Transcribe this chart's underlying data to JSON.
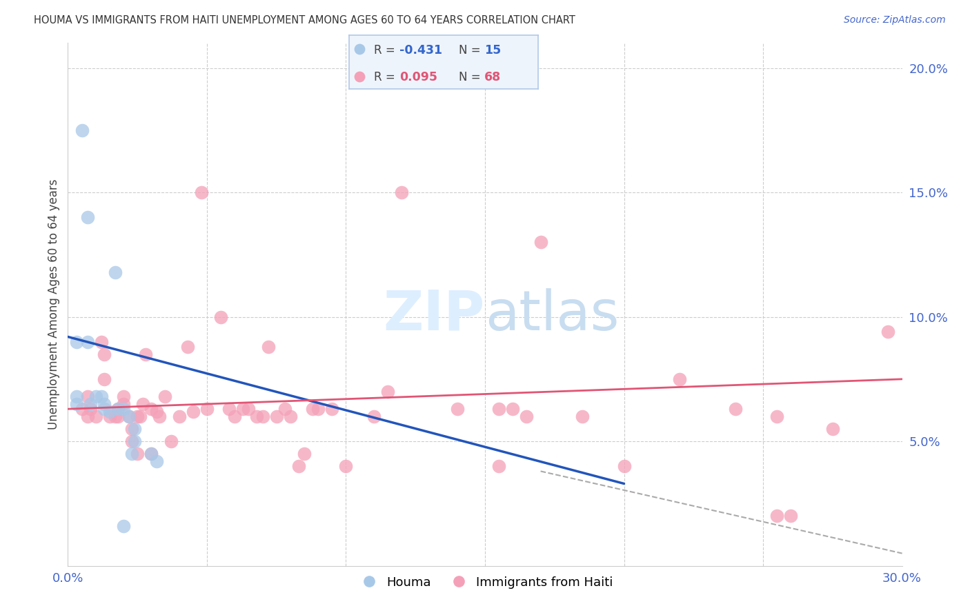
{
  "title": "HOUMA VS IMMIGRANTS FROM HAITI UNEMPLOYMENT AMONG AGES 60 TO 64 YEARS CORRELATION CHART",
  "source": "Source: ZipAtlas.com",
  "ylabel": "Unemployment Among Ages 60 to 64 years",
  "xlim": [
    0.0,
    0.3
  ],
  "ylim": [
    0.0,
    0.21
  ],
  "xtick_positions": [
    0.0,
    0.05,
    0.1,
    0.15,
    0.2,
    0.25,
    0.3
  ],
  "xticklabels": [
    "0.0%",
    "",
    "",
    "",
    "",
    "",
    "30.0%"
  ],
  "yticks_right": [
    0.05,
    0.1,
    0.15,
    0.2
  ],
  "ytick_labels_right": [
    "5.0%",
    "10.0%",
    "15.0%",
    "20.0%"
  ],
  "houma_color": "#a8c8e8",
  "haiti_color": "#f4a0b8",
  "houma_line_color": "#2255bb",
  "haiti_line_color": "#e05575",
  "houma_line": [
    [
      0.0,
      0.092
    ],
    [
      0.2,
      0.033
    ]
  ],
  "haiti_line": [
    [
      0.0,
      0.063
    ],
    [
      0.3,
      0.075
    ]
  ],
  "houma_dash_line": [
    [
      0.17,
      0.038
    ],
    [
      0.3,
      0.005
    ]
  ],
  "background_color": "#ffffff",
  "watermark_color": "#ddeeff",
  "houma_points": [
    [
      0.005,
      0.175
    ],
    [
      0.007,
      0.14
    ],
    [
      0.017,
      0.118
    ],
    [
      0.003,
      0.09
    ],
    [
      0.007,
      0.09
    ],
    [
      0.003,
      0.068
    ],
    [
      0.01,
      0.068
    ],
    [
      0.003,
      0.065
    ],
    [
      0.008,
      0.065
    ],
    [
      0.012,
      0.068
    ],
    [
      0.013,
      0.065
    ],
    [
      0.013,
      0.063
    ],
    [
      0.015,
      0.062
    ],
    [
      0.018,
      0.063
    ],
    [
      0.02,
      0.063
    ],
    [
      0.022,
      0.06
    ],
    [
      0.024,
      0.055
    ],
    [
      0.024,
      0.05
    ],
    [
      0.023,
      0.045
    ],
    [
      0.03,
      0.045
    ],
    [
      0.032,
      0.042
    ],
    [
      0.02,
      0.016
    ]
  ],
  "haiti_points": [
    [
      0.005,
      0.063
    ],
    [
      0.007,
      0.06
    ],
    [
      0.007,
      0.068
    ],
    [
      0.008,
      0.063
    ],
    [
      0.01,
      0.06
    ],
    [
      0.012,
      0.09
    ],
    [
      0.013,
      0.075
    ],
    [
      0.013,
      0.085
    ],
    [
      0.015,
      0.06
    ],
    [
      0.017,
      0.06
    ],
    [
      0.018,
      0.06
    ],
    [
      0.018,
      0.063
    ],
    [
      0.02,
      0.068
    ],
    [
      0.02,
      0.065
    ],
    [
      0.022,
      0.06
    ],
    [
      0.023,
      0.055
    ],
    [
      0.023,
      0.05
    ],
    [
      0.025,
      0.045
    ],
    [
      0.025,
      0.06
    ],
    [
      0.026,
      0.06
    ],
    [
      0.027,
      0.065
    ],
    [
      0.028,
      0.085
    ],
    [
      0.03,
      0.063
    ],
    [
      0.03,
      0.045
    ],
    [
      0.032,
      0.062
    ],
    [
      0.033,
      0.06
    ],
    [
      0.035,
      0.068
    ],
    [
      0.037,
      0.05
    ],
    [
      0.04,
      0.06
    ],
    [
      0.043,
      0.088
    ],
    [
      0.045,
      0.062
    ],
    [
      0.048,
      0.15
    ],
    [
      0.05,
      0.063
    ],
    [
      0.055,
      0.1
    ],
    [
      0.058,
      0.063
    ],
    [
      0.06,
      0.06
    ],
    [
      0.063,
      0.063
    ],
    [
      0.065,
      0.063
    ],
    [
      0.068,
      0.06
    ],
    [
      0.07,
      0.06
    ],
    [
      0.072,
      0.088
    ],
    [
      0.075,
      0.06
    ],
    [
      0.078,
      0.063
    ],
    [
      0.08,
      0.06
    ],
    [
      0.083,
      0.04
    ],
    [
      0.085,
      0.045
    ],
    [
      0.088,
      0.063
    ],
    [
      0.09,
      0.063
    ],
    [
      0.095,
      0.063
    ],
    [
      0.1,
      0.04
    ],
    [
      0.11,
      0.06
    ],
    [
      0.115,
      0.07
    ],
    [
      0.12,
      0.15
    ],
    [
      0.14,
      0.063
    ],
    [
      0.155,
      0.063
    ],
    [
      0.155,
      0.04
    ],
    [
      0.16,
      0.063
    ],
    [
      0.165,
      0.06
    ],
    [
      0.17,
      0.13
    ],
    [
      0.185,
      0.06
    ],
    [
      0.2,
      0.04
    ],
    [
      0.22,
      0.075
    ],
    [
      0.24,
      0.063
    ],
    [
      0.255,
      0.06
    ],
    [
      0.255,
      0.02
    ],
    [
      0.26,
      0.02
    ],
    [
      0.275,
      0.055
    ],
    [
      0.295,
      0.094
    ]
  ]
}
